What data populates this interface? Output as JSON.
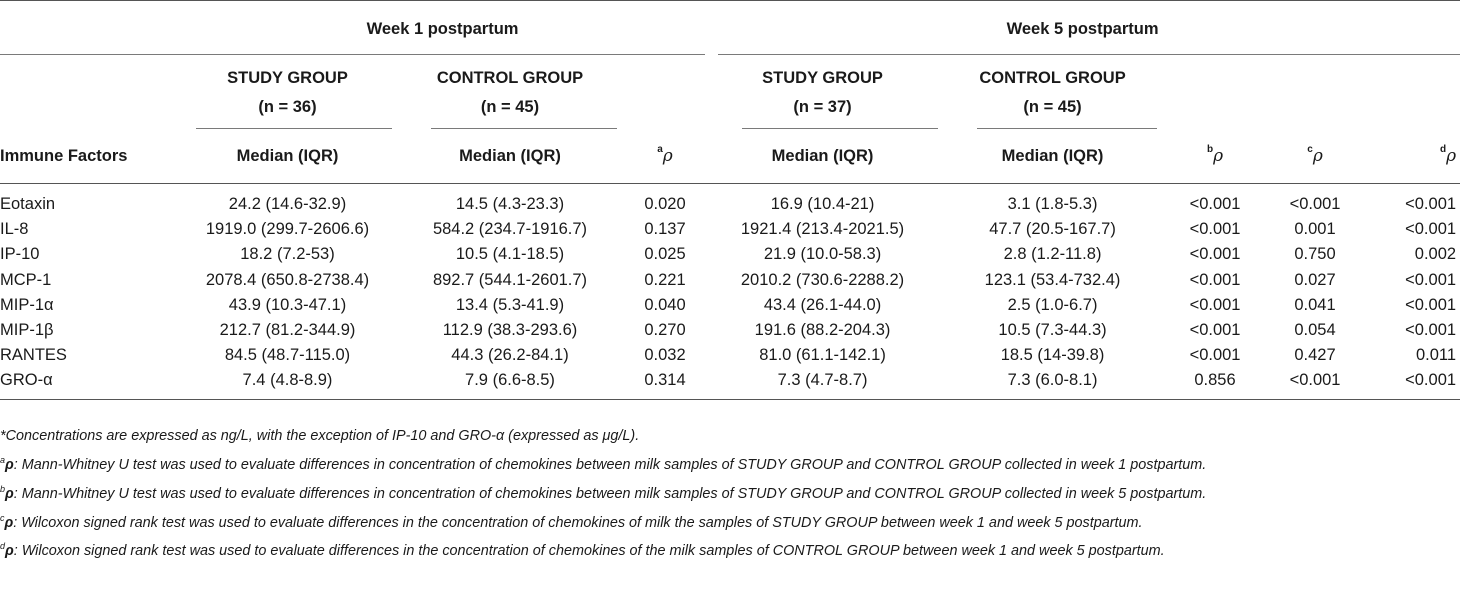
{
  "table": {
    "periods": [
      "Week 1 postpartum",
      "Week 5 postpartum"
    ],
    "groups": [
      {
        "name": "STUDY GROUP",
        "n": "(n = 36)"
      },
      {
        "name": "CONTROL GROUP",
        "n": "(n = 45)"
      },
      {
        "name": "STUDY GROUP",
        "n": "(n = 37)"
      },
      {
        "name": "CONTROL GROUP",
        "n": "(n = 45)"
      }
    ],
    "columns": {
      "factor": "Immune Factors",
      "median": "Median (IQR)",
      "rho_symbol": "ρ",
      "rho_a": "a",
      "rho_b": "b",
      "rho_c": "c",
      "rho_d": "d"
    },
    "rows": [
      {
        "factor": "Eotaxin",
        "w1_study": "24.2 (14.6-32.9)",
        "w1_control": "14.5 (4.3-23.3)",
        "a": "0.020",
        "w5_study": "16.9 (10.4-21)",
        "w5_control": "3.1 (1.8-5.3)",
        "b": "<0.001",
        "c": "<0.001",
        "d": "<0.001"
      },
      {
        "factor": "IL-8",
        "w1_study": "1919.0 (299.7-2606.6)",
        "w1_control": "584.2 (234.7-1916.7)",
        "a": "0.137",
        "w5_study": "1921.4 (213.4-2021.5)",
        "w5_control": "47.7 (20.5-167.7)",
        "b": "<0.001",
        "c": "0.001",
        "d": "<0.001"
      },
      {
        "factor": "IP-10",
        "w1_study": "18.2 (7.2-53)",
        "w1_control": "10.5 (4.1-18.5)",
        "a": "0.025",
        "w5_study": "21.9 (10.0-58.3)",
        "w5_control": "2.8 (1.2-11.8)",
        "b": "<0.001",
        "c": "0.750",
        "d": "0.002"
      },
      {
        "factor": "MCP-1",
        "w1_study": "2078.4 (650.8-2738.4)",
        "w1_control": "892.7 (544.1-2601.7)",
        "a": "0.221",
        "w5_study": "2010.2 (730.6-2288.2)",
        "w5_control": "123.1 (53.4-732.4)",
        "b": "<0.001",
        "c": "0.027",
        "d": "<0.001"
      },
      {
        "factor": "MIP-1α",
        "w1_study": "43.9 (10.3-47.1)",
        "w1_control": "13.4 (5.3-41.9)",
        "a": "0.040",
        "w5_study": "43.4 (26.1-44.0)",
        "w5_control": "2.5 (1.0-6.7)",
        "b": "<0.001",
        "c": "0.041",
        "d": "<0.001"
      },
      {
        "factor": "MIP-1β",
        "w1_study": "212.7 (81.2-344.9)",
        "w1_control": "112.9 (38.3-293.6)",
        "a": "0.270",
        "w5_study": "191.6 (88.2-204.3)",
        "w5_control": "10.5 (7.3-44.3)",
        "b": "<0.001",
        "c": "0.054",
        "d": "<0.001"
      },
      {
        "factor": "RANTES",
        "w1_study": "84.5 (48.7-115.0)",
        "w1_control": "44.3 (26.2-84.1)",
        "a": "0.032",
        "w5_study": "81.0 (61.1-142.1)",
        "w5_control": "18.5 (14-39.8)",
        "b": "<0.001",
        "c": "0.427",
        "d": "0.011"
      },
      {
        "factor": "GRO-α",
        "w1_study": "7.4 (4.8-8.9)",
        "w1_control": "7.9 (6.6-8.5)",
        "a": "0.314",
        "w5_study": "7.3 (4.7-8.7)",
        "w5_control": "7.3 (6.0-8.1)",
        "b": "0.856",
        "c": "<0.001",
        "d": "<0.001"
      }
    ]
  },
  "notes": {
    "star": "*Concentrations are expressed as ng/L, with the exception of IP-10 and GRO-α (expressed as μg/L).",
    "a": {
      "sup": "a",
      "rho": "ρ",
      "text": ": Mann-Whitney U test was used to evaluate differences in concentration of chemokines between milk samples of STUDY GROUP and CONTROL GROUP collected in week 1 postpartum."
    },
    "b": {
      "sup": "b",
      "rho": "ρ",
      "text": ": Mann-Whitney U test was used to evaluate differences in concentration of chemokines between milk samples of STUDY GROUP and CONTROL GROUP collected in week 5 postpartum."
    },
    "c": {
      "sup": "c",
      "rho": "ρ",
      "text": ": Wilcoxon signed rank test was used to evaluate differences in the concentration of chemokines of milk the samples of STUDY GROUP between week 1 and week 5 postpartum."
    },
    "d": {
      "sup": "d",
      "rho": "ρ",
      "text": ": Wilcoxon signed rank test was used to evaluate differences in the concentration of chemokines of the milk samples of CONTROL GROUP between week 1 and week 5 postpartum."
    }
  }
}
